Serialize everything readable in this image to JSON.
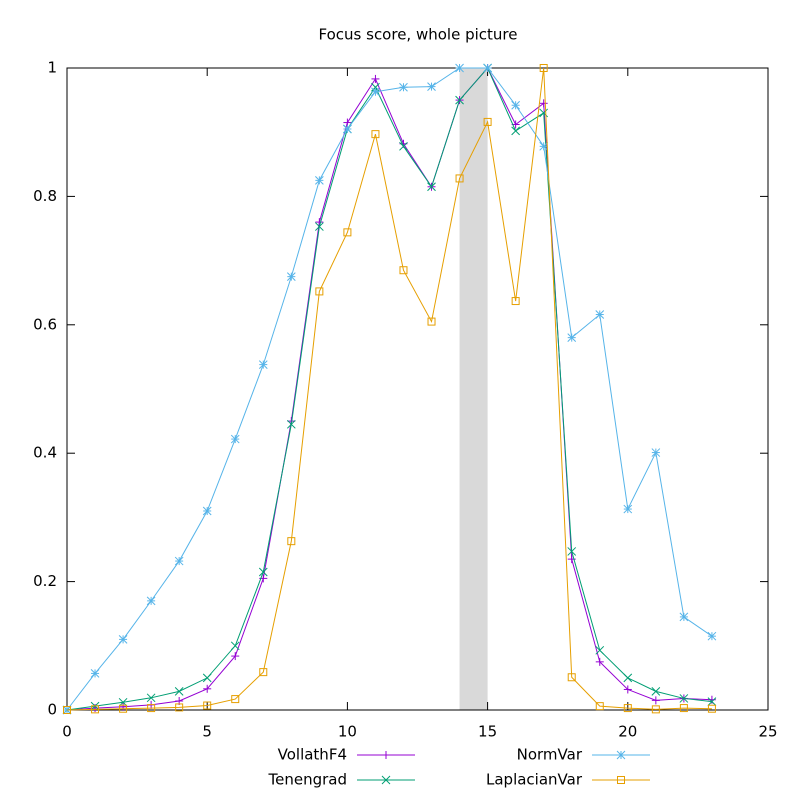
{
  "chart_data": {
    "type": "line",
    "title": "Focus score, whole picture",
    "x": [
      0,
      1,
      2,
      3,
      4,
      5,
      6,
      7,
      8,
      9,
      10,
      11,
      12,
      13,
      14,
      15,
      16,
      17,
      18,
      19,
      20,
      21,
      22,
      23
    ],
    "series": [
      {
        "name": "VollathF4",
        "color": "#9400d3",
        "marker": "plus",
        "values": [
          0,
          0.003,
          0.005,
          0.008,
          0.014,
          0.033,
          0.084,
          0.205,
          0.45,
          0.76,
          0.915,
          0.983,
          0.882,
          0.815,
          0.95,
          1.0,
          0.912,
          0.945,
          0.235,
          0.075,
          0.032,
          0.015,
          0.018,
          0.016
        ]
      },
      {
        "name": "Tenengrad",
        "color": "#009e73",
        "marker": "cross",
        "values": [
          0,
          0.006,
          0.012,
          0.019,
          0.029,
          0.05,
          0.1,
          0.215,
          0.445,
          0.753,
          0.905,
          0.97,
          0.878,
          0.815,
          0.95,
          1.0,
          0.902,
          0.93,
          0.247,
          0.093,
          0.05,
          0.029,
          0.018,
          0.013
        ]
      },
      {
        "name": "NormVar",
        "color": "#56b4e9",
        "marker": "star",
        "values": [
          0,
          0.057,
          0.11,
          0.17,
          0.232,
          0.31,
          0.422,
          0.538,
          0.675,
          0.825,
          0.905,
          0.963,
          0.97,
          0.971,
          1.0,
          1.0,
          0.942,
          0.878,
          0.58,
          0.616,
          0.313,
          0.401,
          0.145,
          0.115
        ]
      },
      {
        "name": "LaplacianVar",
        "color": "#e69f00",
        "marker": "square",
        "values": [
          0,
          0.001,
          0.002,
          0.003,
          0.004,
          0.007,
          0.017,
          0.059,
          0.263,
          0.652,
          0.744,
          0.897,
          0.685,
          0.605,
          0.828,
          0.916,
          0.637,
          1.0,
          0.051,
          0.006,
          0.003,
          0.001,
          0.003,
          0.002
        ]
      }
    ],
    "xlim": [
      0,
      25
    ],
    "ylim": [
      0,
      1
    ],
    "xticks": [
      0,
      5,
      10,
      15,
      20,
      25
    ],
    "yticks": [
      0,
      0.2,
      0.4,
      0.6,
      0.8,
      1
    ],
    "shaded_span": [
      14,
      15
    ],
    "shaded_color": "#d9d9d9",
    "legend": "bottom"
  }
}
